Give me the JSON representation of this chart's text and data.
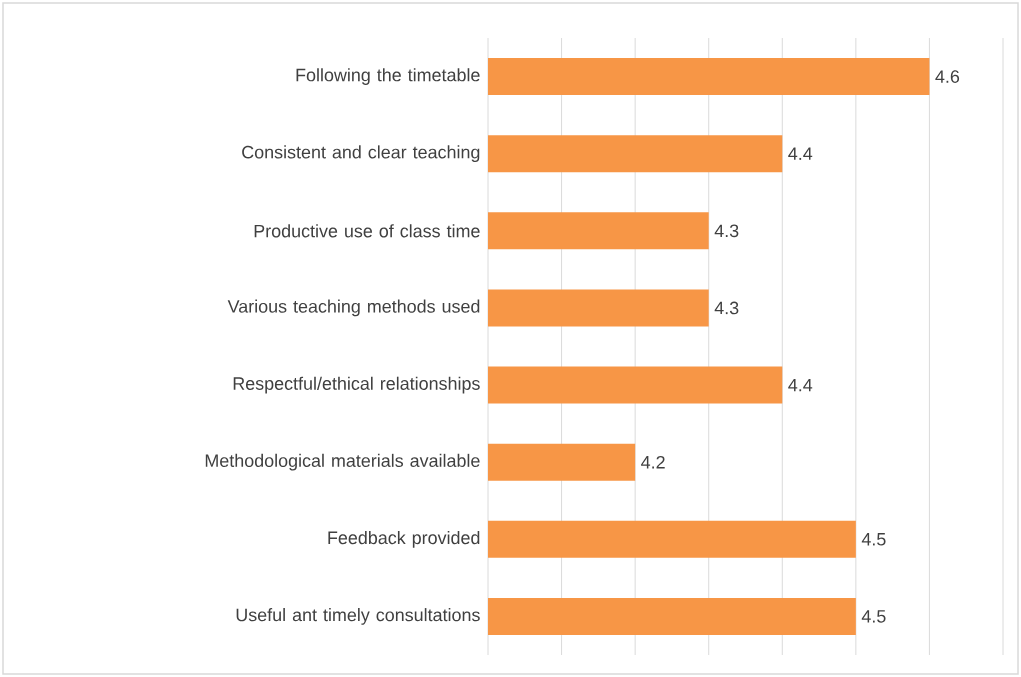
{
  "chart_data": {
    "type": "bar",
    "orientation": "horizontal",
    "categories": [
      "Following the timetable",
      "Consistent and clear teaching",
      "Productive use of class time",
      "Various teaching methods used",
      "Respectful/ethical relationships",
      "Methodological materials available",
      "Feedback provided",
      "Useful ant timely consultations"
    ],
    "values": [
      4.6,
      4.4,
      4.3,
      4.3,
      4.4,
      4.2,
      4.5,
      4.5
    ],
    "color": "#f79646",
    "xlim": [
      4.0,
      4.7
    ],
    "xticks": [
      {
        "value": 4.0,
        "label": null
      },
      {
        "value": 4.1,
        "label": null
      },
      {
        "value": 4.2,
        "label": null
      },
      {
        "value": 4.3,
        "label": null
      },
      {
        "value": 4.4,
        "label": null
      },
      {
        "value": 4.5,
        "label": null
      },
      {
        "value": 4.6,
        "label": null
      },
      {
        "value": 4.7,
        "label": null
      }
    ],
    "grid": "x",
    "tick_labels": "y",
    "data_labels": true
  }
}
